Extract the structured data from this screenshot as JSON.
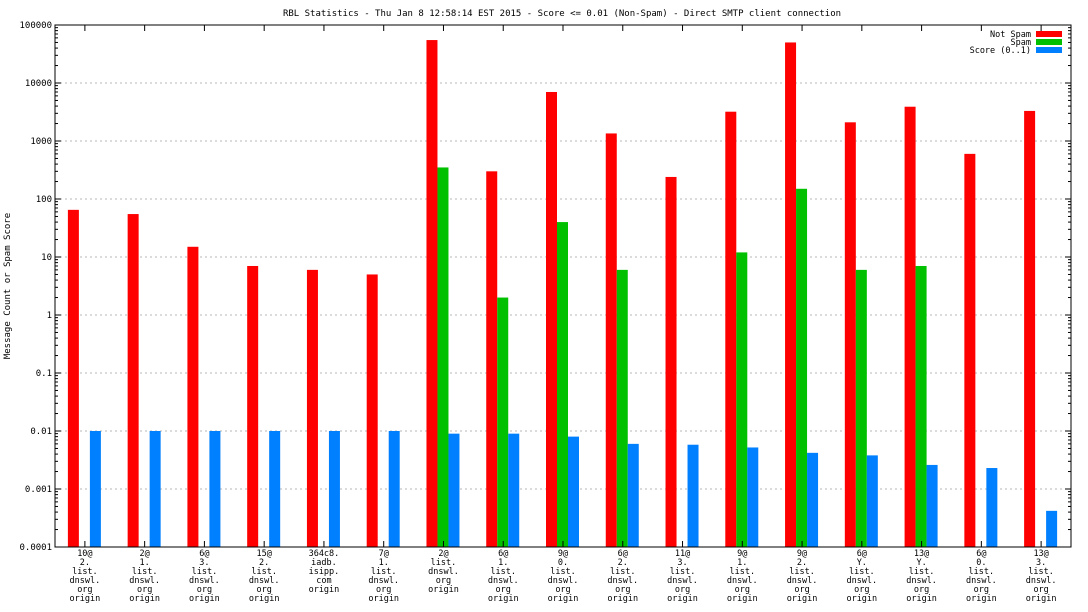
{
  "chart_data": {
    "type": "bar",
    "title": "RBL Statistics - Thu Jan  8 12:58:14 EST 2015 - Score <= 0.01 (Non-Spam) - Direct SMTP client connection",
    "ylabel": "Message Count or Spam Score",
    "xlabel": "",
    "yscale": "log",
    "ylim": [
      0.0001,
      100000
    ],
    "yticks": [
      {
        "value": 0.0001,
        "label": "0.0001"
      },
      {
        "value": 0.001,
        "label": "0.001"
      },
      {
        "value": 0.01,
        "label": "0.01"
      },
      {
        "value": 0.1,
        "label": "0.1"
      },
      {
        "value": 1,
        "label": "1"
      },
      {
        "value": 10,
        "label": "10"
      },
      {
        "value": 100,
        "label": "100"
      },
      {
        "value": 1000,
        "label": "1000"
      },
      {
        "value": 10000,
        "label": "10000"
      },
      {
        "value": 100000,
        "label": "100000"
      }
    ],
    "grid": true,
    "legend_position": "top-right",
    "categories": [
      [
        "10@",
        "2.",
        "list.",
        "dnswl.",
        "org",
        "origin"
      ],
      [
        "2@",
        "1.",
        "list.",
        "dnswl.",
        "org",
        "origin"
      ],
      [
        "6@",
        "3.",
        "list.",
        "dnswl.",
        "org",
        "origin"
      ],
      [
        "15@",
        "2.",
        "list.",
        "dnswl.",
        "org",
        "origin"
      ],
      [
        "364c8.",
        "iadb.",
        "isipp.",
        "com",
        "origin"
      ],
      [
        "7@",
        "1.",
        "list.",
        "dnswl.",
        "org",
        "origin"
      ],
      [
        "2@",
        "list.",
        "dnswl.",
        "org",
        "origin"
      ],
      [
        "6@",
        "1.",
        "list.",
        "dnswl.",
        "org",
        "origin"
      ],
      [
        "9@",
        "0.",
        "list.",
        "dnswl.",
        "org",
        "origin"
      ],
      [
        "6@",
        "2.",
        "list.",
        "dnswl.",
        "org",
        "origin"
      ],
      [
        "11@",
        "3.",
        "list.",
        "dnswl.",
        "org",
        "origin"
      ],
      [
        "9@",
        "1.",
        "list.",
        "dnswl.",
        "org",
        "origin"
      ],
      [
        "9@",
        "2.",
        "list.",
        "dnswl.",
        "org",
        "origin"
      ],
      [
        "6@",
        "Y.",
        "list.",
        "dnswl.",
        "org",
        "origin"
      ],
      [
        "13@",
        "Y.",
        "list.",
        "dnswl.",
        "org",
        "origin"
      ],
      [
        "6@",
        "0.",
        "list.",
        "dnswl.",
        "org",
        "origin"
      ],
      [
        "13@",
        "3.",
        "list.",
        "dnswl.",
        "org",
        "origin"
      ]
    ],
    "series": [
      {
        "name": "Not Spam",
        "color": "#ff0000",
        "values": [
          65,
          55,
          15,
          7,
          6,
          5,
          55000,
          300,
          7000,
          1350,
          240,
          3200,
          50000,
          2100,
          3900,
          600,
          3300
        ]
      },
      {
        "name": "Spam",
        "color": "#00c000",
        "values": [
          null,
          null,
          null,
          null,
          null,
          null,
          350,
          2,
          40,
          6,
          null,
          12,
          150,
          6,
          7,
          null,
          null
        ]
      },
      {
        "name": "Score (0..1)",
        "color": "#0080ff",
        "values": [
          0.01,
          0.01,
          0.01,
          0.01,
          0.01,
          0.01,
          0.009,
          0.009,
          0.008,
          0.006,
          0.0058,
          0.0052,
          0.0042,
          0.0038,
          0.0026,
          0.0023,
          0.00042
        ]
      }
    ]
  }
}
